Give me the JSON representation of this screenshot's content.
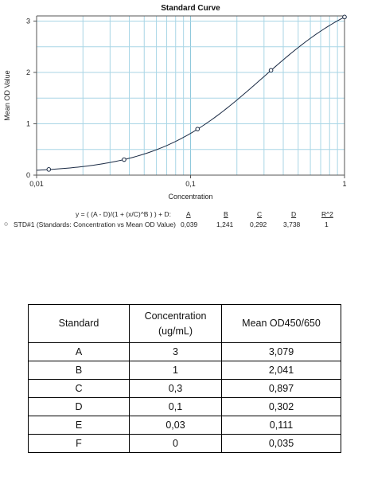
{
  "chart_data": {
    "type": "scatter",
    "title": "Standard Curve",
    "xlabel": "Concentration",
    "ylabel": "Mean OD Value",
    "x_scale": "log",
    "xlim": [
      0.01,
      1
    ],
    "ylim": [
      0,
      3.1
    ],
    "x_tick_labels": [
      "0,01",
      "0,1",
      "1"
    ],
    "y_tick_labels": [
      "0",
      "1",
      "2",
      "3"
    ],
    "grid": true,
    "series": [
      {
        "name": "STD#1 (Standards: Concentration vs Mean OD Value)",
        "points": [
          {
            "x": 0.012,
            "y": 0.111
          },
          {
            "x": 0.037,
            "y": 0.302
          },
          {
            "x": 0.111,
            "y": 0.897
          },
          {
            "x": 0.333,
            "y": 2.041
          },
          {
            "x": 1.0,
            "y": 3.079
          }
        ]
      }
    ],
    "fit": {
      "equation": "y = ( (A - D)/(1 + (x/C)^B ) ) + D:",
      "headers": [
        "A",
        "B",
        "C",
        "D",
        "R^2"
      ],
      "values": [
        "0,039",
        "1,241",
        "0,292",
        "3,738",
        "1"
      ],
      "A": 0.039,
      "B": 1.241,
      "C": 0.292,
      "D": 3.738,
      "R2": 1
    }
  },
  "table": {
    "headers": [
      "Standard",
      "Concentration\n(ug/mL)",
      "Mean OD450/650"
    ],
    "rows": [
      [
        "A",
        "3",
        "3,079"
      ],
      [
        "B",
        "1",
        "2,041"
      ],
      [
        "C",
        "0,3",
        "0,897"
      ],
      [
        "D",
        "0,1",
        "0,302"
      ],
      [
        "E",
        "0,03",
        "0,111"
      ],
      [
        "F",
        "0",
        "0,035"
      ]
    ]
  }
}
